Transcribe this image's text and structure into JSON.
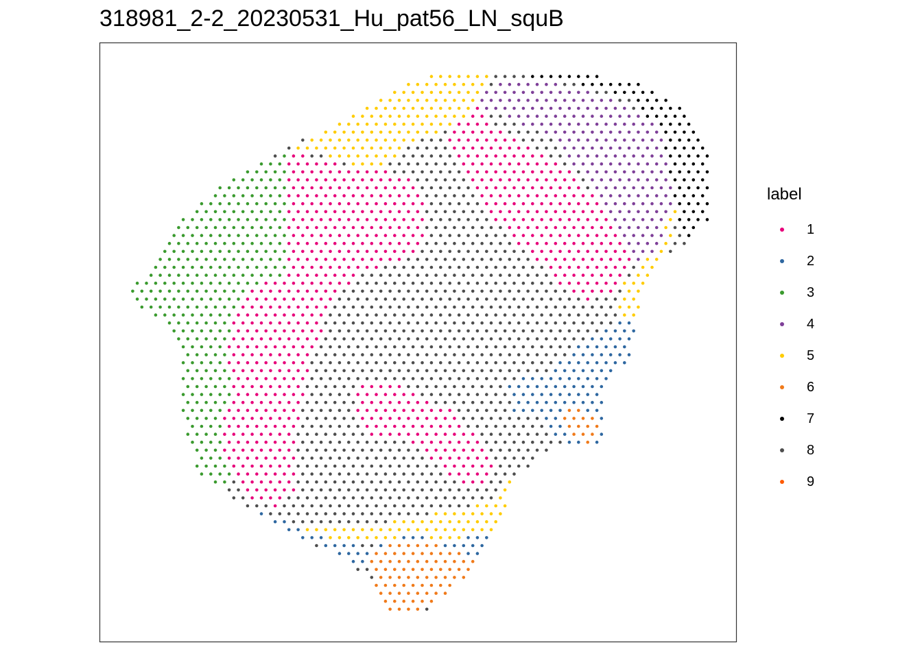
{
  "chart_data": {
    "type": "scatter",
    "title": "318981_2-2_20230531_Hu_pat56_LN_squB",
    "legend": {
      "title": "label",
      "position": "right",
      "entries": [
        {
          "label": "1",
          "color": "#E7007A"
        },
        {
          "label": "2",
          "color": "#2E67A0"
        },
        {
          "label": "3",
          "color": "#3A9A2E"
        },
        {
          "label": "4",
          "color": "#7E3F98"
        },
        {
          "label": "5",
          "color": "#FFCC00"
        },
        {
          "label": "6",
          "color": "#F07A1A"
        },
        {
          "label": "7",
          "color": "#000000"
        },
        {
          "label": "8",
          "color": "#4D4D4D"
        },
        {
          "label": "9",
          "color": "#FF5A00"
        }
      ]
    },
    "grid": false,
    "axes_visible": false,
    "description_of_regions": "spatial spot map; clusters arranged as regions",
    "xlim": [
      0,
      1
    ],
    "ylim": [
      0,
      1
    ]
  }
}
